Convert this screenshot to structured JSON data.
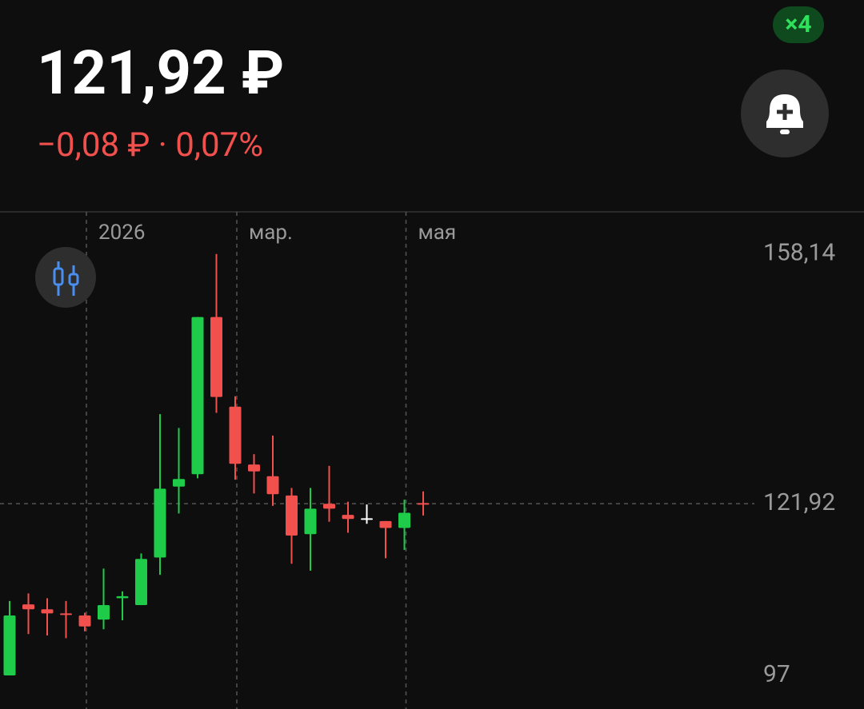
{
  "header": {
    "price": "121,92 ₽",
    "change": "−0,08 ₽ · 0,07%",
    "badge": "×4"
  },
  "chart_data": {
    "type": "candlestick",
    "categories": [
      null,
      null,
      null,
      null,
      "2026",
      null,
      null,
      null,
      null,
      null,
      null,
      null,
      "мар.",
      null,
      null,
      null,
      null,
      null,
      null,
      null,
      null,
      "мая",
      null
    ],
    "open": [
      97.0,
      107.3,
      106.6,
      106.0,
      105.7,
      105.1,
      108.2,
      107.2,
      114.1,
      124.4,
      126.2,
      149.0,
      136.0,
      127.6,
      125.9,
      123.1,
      117.5,
      121.9,
      120.3,
      119.8,
      119.4,
      118.4,
      122.0
    ],
    "high": [
      107.8,
      108.9,
      108.2,
      107.8,
      106.1,
      112.5,
      109.2,
      114.7,
      134.9,
      132.9,
      149.0,
      158.14,
      137.5,
      129.1,
      131.8,
      124.2,
      124.2,
      127.4,
      122.2,
      121.8,
      119.4,
      122.5,
      123.7
    ],
    "low": [
      97.0,
      103.0,
      102.8,
      102.4,
      103.4,
      103.7,
      105.0,
      107.2,
      111.6,
      120.5,
      125.6,
      135.1,
      125.4,
      123.4,
      121.6,
      113.2,
      112.2,
      119.3,
      117.7,
      119.0,
      114.0,
      115.2,
      120.2
    ],
    "close": [
      105.7,
      106.6,
      106.0,
      105.8,
      104.1,
      107.2,
      108.5,
      113.9,
      124.1,
      125.5,
      149.0,
      137.4,
      127.7,
      126.6,
      123.3,
      117.3,
      121.2,
      121.2,
      119.7,
      119.8,
      118.4,
      120.6,
      121.92
    ],
    "up_color": "#1fcc4a",
    "down_color": "#f2504d",
    "flat_color": "#ffffff",
    "ylim": [
      92.13,
      164.26
    ],
    "yticks": [
      {
        "value": 158.14,
        "label": "158,14"
      },
      {
        "value": 121.92,
        "label": "121,92"
      },
      97
    ]
  }
}
